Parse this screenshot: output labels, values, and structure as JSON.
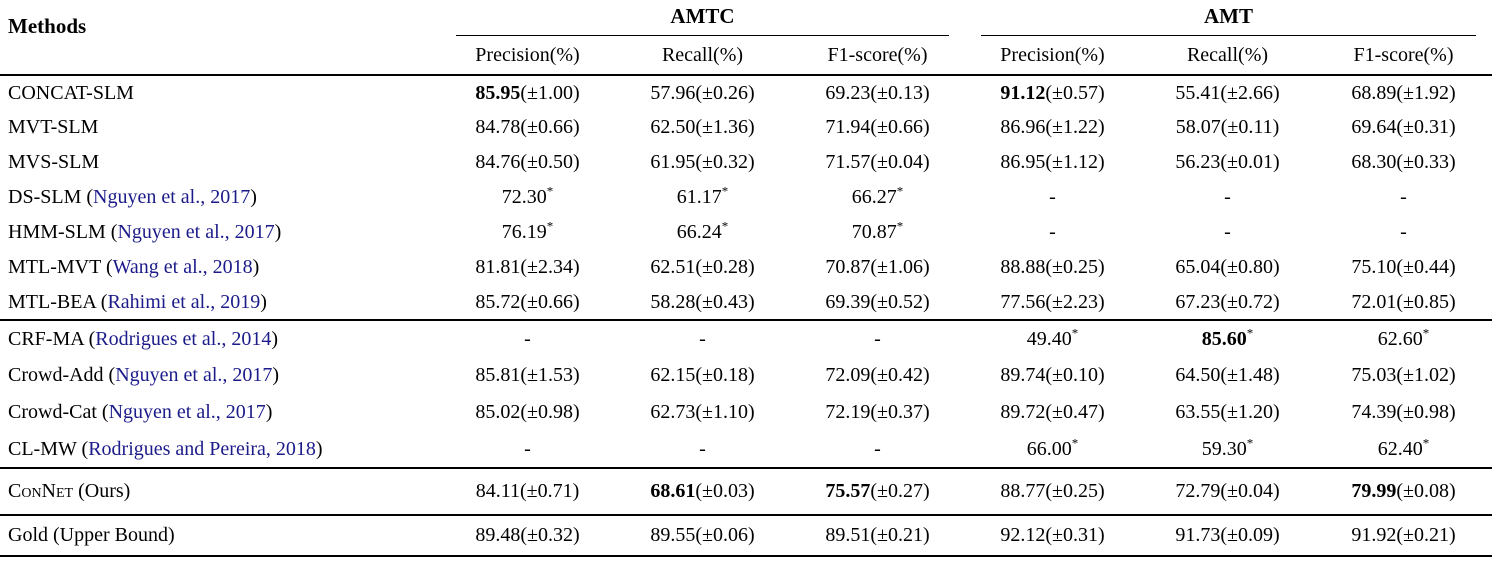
{
  "table": {
    "methods_header": "Methods",
    "colors": {
      "citation": "#1b1b8a",
      "text": "#000000",
      "rule": "#000000"
    },
    "groups": [
      {
        "label": "AMTC",
        "columns": [
          "Precision(%)",
          "Recall(%)",
          "F1-score(%)"
        ]
      },
      {
        "label": "AMT",
        "columns": [
          "Precision(%)",
          "Recall(%)",
          "F1-score(%)"
        ]
      }
    ],
    "sections": [
      {
        "rows": [
          {
            "name": "CONCAT-SLM",
            "smallcaps": false,
            "suffix": null,
            "citation": null,
            "cells": [
              {
                "value": "85.95",
                "bold": true,
                "pm": "1.00"
              },
              {
                "value": "57.96",
                "pm": "0.26"
              },
              {
                "value": "69.23",
                "pm": "0.13"
              },
              {
                "value": "91.12",
                "bold": true,
                "pm": "0.57"
              },
              {
                "value": "55.41",
                "pm": "2.66"
              },
              {
                "value": "68.89",
                "pm": "1.92"
              }
            ]
          },
          {
            "name": "MVT-SLM",
            "smallcaps": false,
            "suffix": null,
            "citation": null,
            "cells": [
              {
                "value": "84.78",
                "pm": "0.66"
              },
              {
                "value": "62.50",
                "pm": "1.36"
              },
              {
                "value": "71.94",
                "pm": "0.66"
              },
              {
                "value": "86.96",
                "pm": "1.22"
              },
              {
                "value": "58.07",
                "pm": "0.11"
              },
              {
                "value": "69.64",
                "pm": "0.31"
              }
            ]
          },
          {
            "name": "MVS-SLM",
            "smallcaps": false,
            "suffix": null,
            "citation": null,
            "cells": [
              {
                "value": "84.76",
                "pm": "0.50"
              },
              {
                "value": "61.95",
                "pm": "0.32"
              },
              {
                "value": "71.57",
                "pm": "0.04"
              },
              {
                "value": "86.95",
                "pm": "1.12"
              },
              {
                "value": "56.23",
                "pm": "0.01"
              },
              {
                "value": "68.30",
                "pm": "0.33"
              }
            ]
          },
          {
            "name": "DS-SLM",
            "smallcaps": false,
            "suffix": null,
            "citation": "Nguyen et al., 2017",
            "cells": [
              {
                "value": "72.30",
                "star": true
              },
              {
                "value": "61.17",
                "star": true
              },
              {
                "value": "66.27",
                "star": true
              },
              {
                "dash": true
              },
              {
                "dash": true
              },
              {
                "dash": true
              }
            ]
          },
          {
            "name": "HMM-SLM",
            "smallcaps": false,
            "suffix": null,
            "citation": "Nguyen et al., 2017",
            "cells": [
              {
                "value": "76.19",
                "star": true
              },
              {
                "value": "66.24",
                "star": true
              },
              {
                "value": "70.87",
                "star": true
              },
              {
                "dash": true
              },
              {
                "dash": true
              },
              {
                "dash": true
              }
            ]
          },
          {
            "name": "MTL-MVT",
            "smallcaps": false,
            "suffix": null,
            "citation": "Wang et al., 2018",
            "cells": [
              {
                "value": "81.81",
                "pm": "2.34"
              },
              {
                "value": "62.51",
                "pm": "0.28"
              },
              {
                "value": "70.87",
                "pm": "1.06"
              },
              {
                "value": "88.88",
                "pm": "0.25"
              },
              {
                "value": "65.04",
                "pm": "0.80"
              },
              {
                "value": "75.10",
                "pm": "0.44"
              }
            ]
          },
          {
            "name": "MTL-BEA",
            "smallcaps": false,
            "suffix": null,
            "citation": "Rahimi et al., 2019",
            "cells": [
              {
                "value": "85.72",
                "pm": "0.66"
              },
              {
                "value": "58.28",
                "pm": "0.43"
              },
              {
                "value": "69.39",
                "pm": "0.52"
              },
              {
                "value": "77.56",
                "pm": "2.23"
              },
              {
                "value": "67.23",
                "pm": "0.72"
              },
              {
                "value": "72.01",
                "pm": "0.85"
              }
            ]
          }
        ]
      },
      {
        "rows": [
          {
            "name": "CRF-MA",
            "smallcaps": false,
            "suffix": null,
            "citation": "Rodrigues et al., 2014",
            "cells": [
              {
                "dash": true
              },
              {
                "dash": true
              },
              {
                "dash": true
              },
              {
                "value": "49.40",
                "star": true
              },
              {
                "value": "85.60",
                "bold": true,
                "star": true
              },
              {
                "value": "62.60",
                "star": true
              }
            ]
          },
          {
            "name": "Crowd-Add",
            "smallcaps": false,
            "suffix": null,
            "citation": "Nguyen et al., 2017",
            "cells": [
              {
                "value": "85.81",
                "pm": "1.53"
              },
              {
                "value": "62.15",
                "pm": "0.18"
              },
              {
                "value": "72.09",
                "pm": "0.42"
              },
              {
                "value": "89.74",
                "pm": "0.10"
              },
              {
                "value": "64.50",
                "pm": "1.48"
              },
              {
                "value": "75.03",
                "pm": "1.02"
              }
            ]
          },
          {
            "name": "Crowd-Cat",
            "smallcaps": false,
            "suffix": null,
            "citation": "Nguyen et al., 2017",
            "cells": [
              {
                "value": "85.02",
                "pm": "0.98"
              },
              {
                "value": "62.73",
                "pm": "1.10"
              },
              {
                "value": "72.19",
                "pm": "0.37"
              },
              {
                "value": "89.72",
                "pm": "0.47"
              },
              {
                "value": "63.55",
                "pm": "1.20"
              },
              {
                "value": "74.39",
                "pm": "0.98"
              }
            ]
          },
          {
            "name": "CL-MW",
            "smallcaps": false,
            "suffix": null,
            "citation": "Rodrigues and Pereira, 2018",
            "cells": [
              {
                "dash": true
              },
              {
                "dash": true
              },
              {
                "dash": true
              },
              {
                "value": "66.00",
                "star": true
              },
              {
                "value": "59.30",
                "star": true
              },
              {
                "value": "62.40",
                "star": true
              }
            ]
          }
        ]
      },
      {
        "rows": [
          {
            "name": "ConNet",
            "smallcaps": true,
            "suffix": "Ours",
            "citation": null,
            "cells": [
              {
                "value": "84.11",
                "pm": "0.71"
              },
              {
                "value": "68.61",
                "bold": true,
                "pm": "0.03"
              },
              {
                "value": "75.57",
                "bold": true,
                "pm": "0.27"
              },
              {
                "value": "88.77",
                "pm": "0.25"
              },
              {
                "value": "72.79",
                "pm": "0.04"
              },
              {
                "value": "79.99",
                "bold": true,
                "pm": "0.08"
              }
            ]
          }
        ]
      },
      {
        "rows": [
          {
            "name": "Gold",
            "smallcaps": false,
            "suffix": "Upper Bound",
            "citation": null,
            "cells": [
              {
                "value": "89.48",
                "pm": "0.32"
              },
              {
                "value": "89.55",
                "pm": "0.06"
              },
              {
                "value": "89.51",
                "pm": "0.21"
              },
              {
                "value": "92.12",
                "pm": "0.31"
              },
              {
                "value": "91.73",
                "pm": "0.09"
              },
              {
                "value": "91.92",
                "pm": "0.21"
              }
            ]
          }
        ]
      }
    ]
  }
}
